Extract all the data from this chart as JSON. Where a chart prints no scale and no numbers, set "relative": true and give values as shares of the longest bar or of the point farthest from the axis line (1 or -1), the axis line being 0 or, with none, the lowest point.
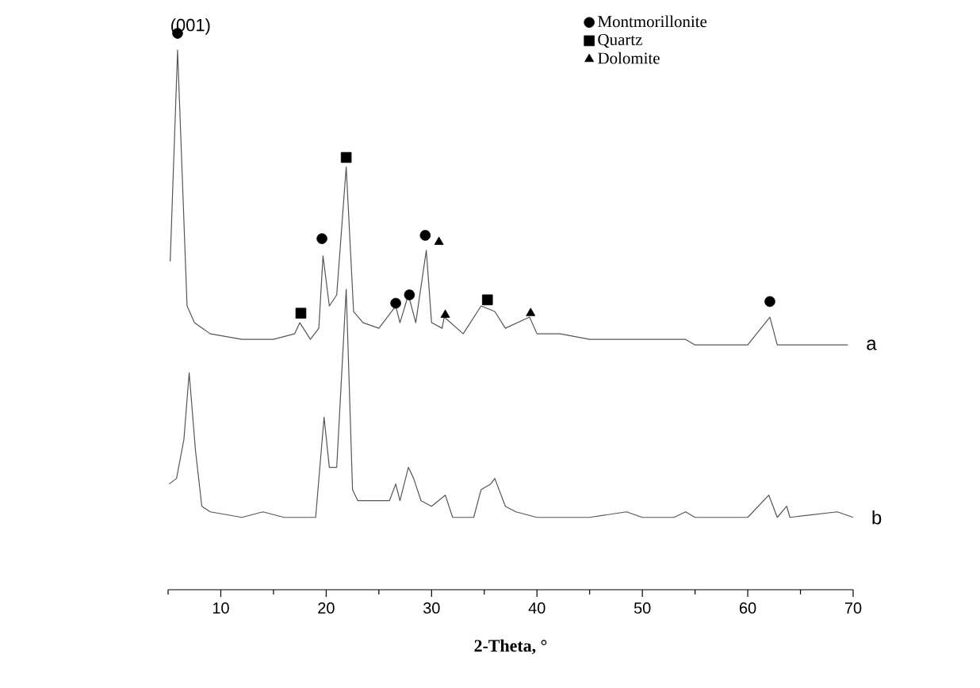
{
  "chart_data": {
    "type": "line",
    "relative": true,
    "xlabel": "2-Theta, °",
    "xlim": [
      5,
      70
    ],
    "xticks": [
      {
        "value": 5,
        "label": null
      },
      10,
      {
        "value": 15,
        "label": null
      },
      20,
      {
        "value": 25,
        "label": null
      },
      30,
      {
        "value": 35,
        "label": null
      },
      40,
      {
        "value": 45,
        "label": null
      },
      50,
      {
        "value": 55,
        "label": null
      },
      60,
      {
        "value": 65,
        "label": null
      },
      70
    ],
    "legend": "top right",
    "annotations": [
      "(001)"
    ],
    "series": [
      {
        "name": "a",
        "color": "#555555",
        "x": [
          5.2,
          5.9,
          6.8,
          7.5,
          9,
          12,
          15,
          17,
          17.5,
          18.5,
          19.3,
          19.7,
          20.3,
          21,
          21.9,
          22.6,
          23.5,
          25,
          26.6,
          27,
          27.8,
          28.5,
          29.5,
          30,
          31,
          31.2,
          33,
          34.7,
          36,
          37,
          39.3,
          40,
          42.2,
          45,
          50,
          54.1,
          55,
          57,
          60,
          62.1,
          62.8,
          66,
          69.5
        ],
        "values": [
          0.59,
          0.97,
          0.51,
          0.48,
          0.46,
          0.45,
          0.45,
          0.46,
          0.48,
          0.45,
          0.47,
          0.6,
          0.51,
          0.53,
          0.76,
          0.5,
          0.48,
          0.47,
          0.51,
          0.48,
          0.53,
          0.48,
          0.61,
          0.48,
          0.47,
          0.49,
          0.46,
          0.51,
          0.5,
          0.47,
          0.49,
          0.46,
          0.46,
          0.45,
          0.45,
          0.45,
          0.44,
          0.44,
          0.44,
          0.49,
          0.44,
          0.44,
          0.44
        ]
      },
      {
        "name": "b",
        "color": "#555555",
        "x": [
          5.1,
          5.8,
          6.5,
          7,
          7.6,
          8.2,
          9,
          12,
          14,
          16,
          19,
          19.8,
          20.3,
          21,
          21.9,
          22.5,
          23,
          24,
          26,
          26.6,
          27,
          27.8,
          28.3,
          29,
          30,
          31.3,
          32,
          34,
          34.7,
          35.6,
          36,
          37,
          38,
          40,
          45,
          48.5,
          50,
          53,
          54.1,
          55,
          57,
          60,
          62,
          62.8,
          63.7,
          64,
          68.5,
          70
        ],
        "values": [
          0.19,
          0.2,
          0.27,
          0.39,
          0.25,
          0.15,
          0.14,
          0.13,
          0.14,
          0.13,
          0.13,
          0.31,
          0.22,
          0.22,
          0.54,
          0.18,
          0.16,
          0.16,
          0.16,
          0.19,
          0.16,
          0.22,
          0.2,
          0.16,
          0.15,
          0.17,
          0.13,
          0.13,
          0.18,
          0.19,
          0.2,
          0.15,
          0.14,
          0.13,
          0.13,
          0.14,
          0.13,
          0.13,
          0.14,
          0.13,
          0.13,
          0.13,
          0.17,
          0.13,
          0.15,
          0.13,
          0.14,
          0.13
        ]
      },
      {
        "name": "Montmorillonite",
        "type": "scatter",
        "marker": "circle",
        "color": "#000000",
        "x": [
          5.9,
          19.6,
          26.6,
          27.9,
          29.4,
          62.1
        ],
        "values": [
          1.0,
          0.631,
          0.515,
          0.53,
          0.637,
          0.518
        ]
      },
      {
        "name": "Quartz",
        "type": "scatter",
        "marker": "square",
        "color": "#000000",
        "x": [
          17.6,
          21.9,
          35.3
        ],
        "values": [
          0.497,
          0.777,
          0.521
        ]
      },
      {
        "name": "Dolomite",
        "type": "scatter",
        "marker": "triangle",
        "color": "#000000",
        "x": [
          30.7,
          31.3,
          39.4
        ],
        "values": [
          0.625,
          0.494,
          0.497
        ]
      }
    ]
  }
}
